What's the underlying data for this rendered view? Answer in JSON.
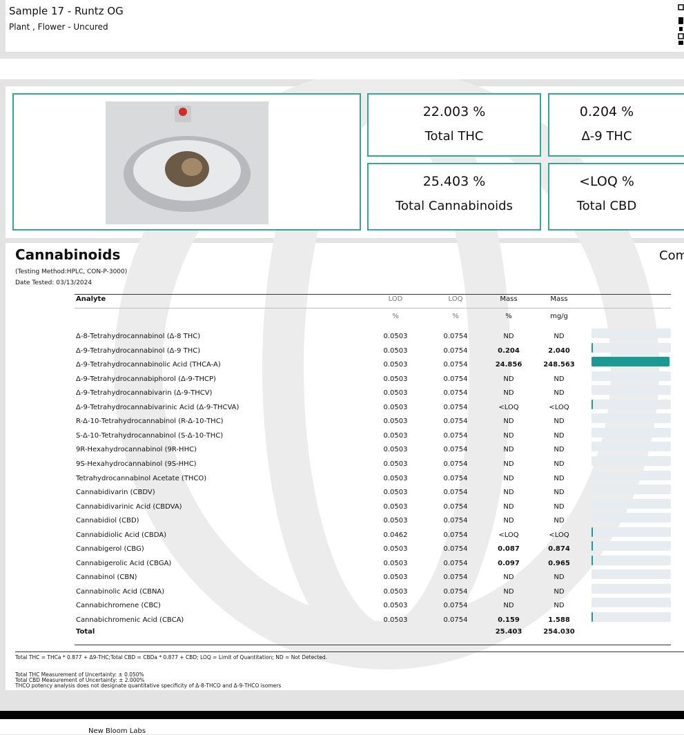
{
  "header": {
    "title": "Sample 17 - Runtz OG",
    "subtitle": "Plant , Flower - Uncured"
  },
  "summary": [
    {
      "value": "22.003 %",
      "label": "Total THC"
    },
    {
      "value": "0.204 %",
      "label": "Δ-9 THC"
    },
    {
      "value": "25.403 %",
      "label": "Total Cannabinoids"
    },
    {
      "value": "<LOQ %",
      "label": "Total CBD"
    }
  ],
  "section": {
    "title": "Cannabinoids",
    "right_title": "Com",
    "method": "(Testing Method:HPLC, CON-P-3000)",
    "date": "Date Tested: 03/13/2024"
  },
  "table": {
    "headers": [
      "Analyte",
      "LOD",
      "LOQ",
      "Mass",
      "Mass"
    ],
    "units": [
      "%",
      "%",
      "%",
      "mg/g"
    ],
    "rows": [
      [
        "Δ-8-Tetrahydrocannabinol (Δ-8 THC)",
        "0.0503",
        "0.0754",
        "ND",
        "ND"
      ],
      [
        "Δ-9-Tetrahydrocannabinol (Δ-9 THC)",
        "0.0503",
        "0.0754",
        "0.204",
        "2.040"
      ],
      [
        "Δ-9-Tetrahydrocannabinolic Acid (THCA-A)",
        "0.0503",
        "0.0754",
        "24.856",
        "248.563"
      ],
      [
        "Δ-9-Tetrahydrocannabiphorol (Δ-9-THCP)",
        "0.0503",
        "0.0754",
        "ND",
        "ND"
      ],
      [
        "Δ-9-Tetrahydrocannabivarin (Δ-9-THCV)",
        "0.0503",
        "0.0754",
        "ND",
        "ND"
      ],
      [
        "Δ-9-Tetrahydrocannabivarinic Acid (Δ-9-THCVA)",
        "0.0503",
        "0.0754",
        "<LOQ",
        "<LOQ"
      ],
      [
        "R-Δ-10-Tetrahydrocannabinol (R-Δ-10-THC)",
        "0.0503",
        "0.0754",
        "ND",
        "ND"
      ],
      [
        "S-Δ-10-Tetrahydrocannabinol (S-Δ-10-THC)",
        "0.0503",
        "0.0754",
        "ND",
        "ND"
      ],
      [
        "9R-Hexahydrocannabinol (9R-HHC)",
        "0.0503",
        "0.0754",
        "ND",
        "ND"
      ],
      [
        "9S-Hexahydrocannabinol (9S-HHC)",
        "0.0503",
        "0.0754",
        "ND",
        "ND"
      ],
      [
        "Tetrahydrocannabinol Acetate (THCO)",
        "0.0503",
        "0.0754",
        "ND",
        "ND"
      ],
      [
        "Cannabidivarin (CBDV)",
        "0.0503",
        "0.0754",
        "ND",
        "ND"
      ],
      [
        "Cannabidivarinic Acid (CBDVA)",
        "0.0503",
        "0.0754",
        "ND",
        "ND"
      ],
      [
        "Cannabidiol (CBD)",
        "0.0503",
        "0.0754",
        "ND",
        "ND"
      ],
      [
        "Cannabidiolic Acid (CBDA)",
        "0.0462",
        "0.0754",
        "<LOQ",
        "<LOQ"
      ],
      [
        "Cannabigerol (CBG)",
        "0.0503",
        "0.0754",
        "0.087",
        "0.874"
      ],
      [
        "Cannabigerolic Acid (CBGA)",
        "0.0503",
        "0.0754",
        "0.097",
        "0.965"
      ],
      [
        "Cannabinol (CBN)",
        "0.0503",
        "0.0754",
        "ND",
        "ND"
      ],
      [
        "Cannabinolic Acid (CBNA)",
        "0.0503",
        "0.0754",
        "ND",
        "ND"
      ],
      [
        "Cannabichromene (CBC)",
        "0.0503",
        "0.0754",
        "ND",
        "ND"
      ],
      [
        "Cannabichromenic Acid (CBCA)",
        "0.0503",
        "0.0754",
        "0.159",
        "1.588"
      ]
    ],
    "total": [
      "Total",
      "25.403",
      "254.030"
    ]
  },
  "notes": [
    "Total THC = THCa * 0.877 + Δ9-THC;Total CBD = CBDa * 0.877 + CBD; LOQ = Limit of Quantitation; ND = Not Detected.",
    "Total THC Measurement of Uncertainty: ± 0.050%",
    "Total CBD Measurement of Uncertainty: ± 2.000%",
    "THCO potency analysis does not designate quantitative specificity of Δ-8-THCO and Δ-9-THCO isomers"
  ],
  "footer": {
    "lab": "New Bloom Labs"
  }
}
